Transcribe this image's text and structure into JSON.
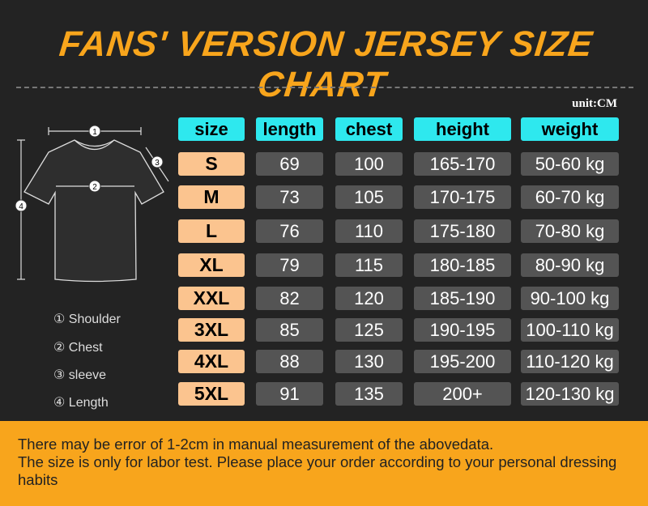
{
  "title": "FANS' VERSION JERSEY SIZE CHART",
  "unit": "unit:CM",
  "headers": [
    "size",
    "length",
    "chest",
    "height",
    "weight"
  ],
  "rows": [
    [
      "S",
      "69",
      "100",
      "165-170",
      "50-60 kg"
    ],
    [
      "M",
      "73",
      "105",
      "170-175",
      "60-70 kg"
    ],
    [
      "L",
      "76",
      "110",
      "175-180",
      "70-80 kg"
    ],
    [
      "XL",
      "79",
      "115",
      "180-185",
      "80-90 kg"
    ],
    [
      "XXL",
      "82",
      "120",
      "185-190",
      "90-100 kg"
    ],
    [
      "3XL",
      "85",
      "125",
      "190-195",
      "100-110 kg"
    ],
    [
      "4XL",
      "88",
      "130",
      "195-200",
      "110-120 kg"
    ],
    [
      "5XL",
      "91",
      "135",
      "200+",
      "120-130 kg"
    ]
  ],
  "diagram": {
    "markers": [
      "1",
      "2",
      "3",
      "4"
    ]
  },
  "legend": [
    "① Shoulder",
    "② Chest",
    "③ sleeve",
    "④ Length"
  ],
  "footer": [
    "There may be error of 1-2cm in manual measurement of the abovedata.",
    "The size is only for labor test. Please place your order according to your personal dressing habits"
  ],
  "colors": {
    "title": "#f8a51c",
    "header": "#2ee8ee",
    "size": "#fbc48f",
    "value": "#545454",
    "footer": "#f8a51c"
  }
}
